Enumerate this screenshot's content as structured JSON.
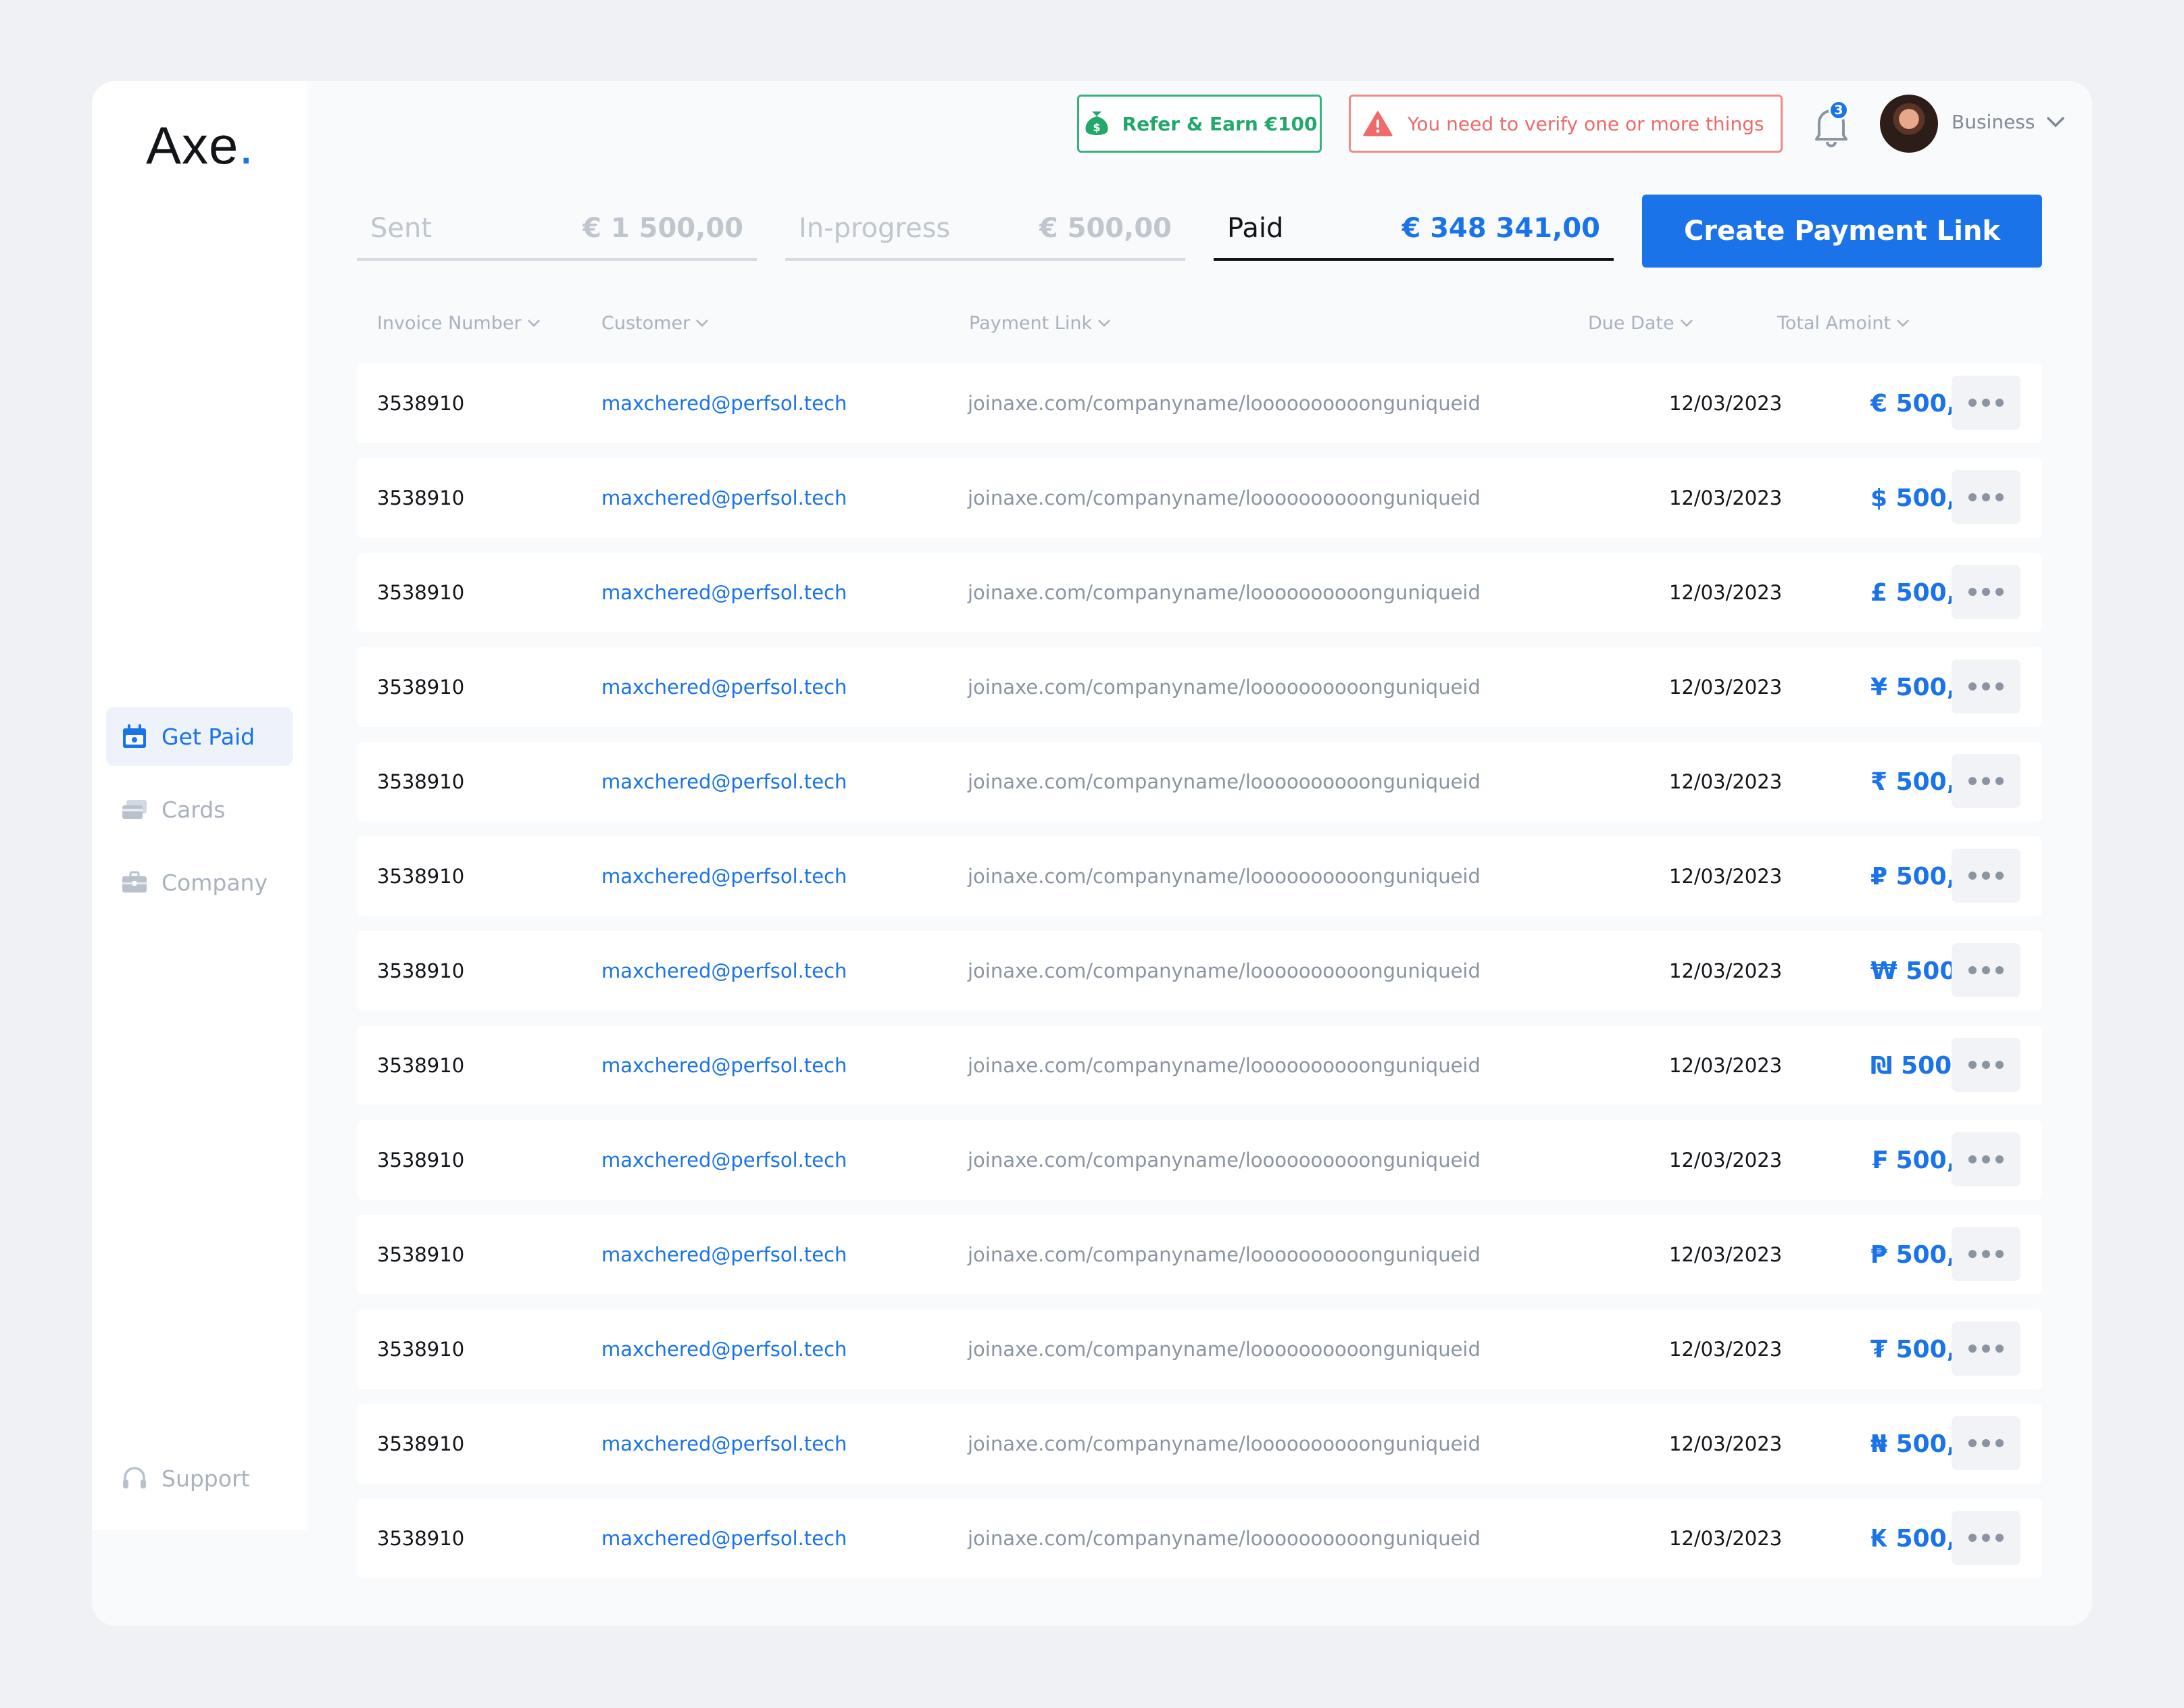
{
  "logo": {
    "text": "Axe",
    "dot": "."
  },
  "nav": [
    {
      "label": "Get Paid",
      "icon": "calendar-money-icon",
      "active": true
    },
    {
      "label": "Cards",
      "icon": "cards-icon",
      "active": false
    },
    {
      "label": "Company",
      "icon": "briefcase-icon",
      "active": false
    }
  ],
  "support": {
    "label": "Support",
    "icon": "headset-icon"
  },
  "header": {
    "refer_label": "Refer & Earn €100",
    "verify_label": "You need to verify one or more things",
    "notifications_count": "3",
    "account_label": "Business"
  },
  "tabs": [
    {
      "label": "Sent",
      "amount": "€ 1 500,00",
      "active": false
    },
    {
      "label": "In-progress",
      "amount": "€ 500,00",
      "active": false
    },
    {
      "label": "Paid",
      "amount": "€ 348 341,00",
      "active": true
    }
  ],
  "create_button": "Create Payment Link",
  "columns": {
    "invoice": "Invoice Number",
    "customer": "Customer",
    "link": "Payment Link",
    "due": "Due Date",
    "total": "Total Amoint"
  },
  "rows": [
    {
      "invoice": "3538910",
      "customer": "maxchered@perfsol.tech",
      "link": "joinaxe.com/companyname/loooooooooonguniqueid",
      "due": "12/03/2023",
      "amount": "€ 500,00"
    },
    {
      "invoice": "3538910",
      "customer": "maxchered@perfsol.tech",
      "link": "joinaxe.com/companyname/loooooooooonguniqueid",
      "due": "12/03/2023",
      "amount": "$ 500,00"
    },
    {
      "invoice": "3538910",
      "customer": "maxchered@perfsol.tech",
      "link": "joinaxe.com/companyname/loooooooooonguniqueid",
      "due": "12/03/2023",
      "amount": "£ 500,00"
    },
    {
      "invoice": "3538910",
      "customer": "maxchered@perfsol.tech",
      "link": "joinaxe.com/companyname/loooooooooonguniqueid",
      "due": "12/03/2023",
      "amount": "¥ 500,00"
    },
    {
      "invoice": "3538910",
      "customer": "maxchered@perfsol.tech",
      "link": "joinaxe.com/companyname/loooooooooonguniqueid",
      "due": "12/03/2023",
      "amount": "₹ 500,00"
    },
    {
      "invoice": "3538910",
      "customer": "maxchered@perfsol.tech",
      "link": "joinaxe.com/companyname/loooooooooonguniqueid",
      "due": "12/03/2023",
      "amount": "₽ 500,00"
    },
    {
      "invoice": "3538910",
      "customer": "maxchered@perfsol.tech",
      "link": "joinaxe.com/companyname/loooooooooonguniqueid",
      "due": "12/03/2023",
      "amount": "₩ 500,00"
    },
    {
      "invoice": "3538910",
      "customer": "maxchered@perfsol.tech",
      "link": "joinaxe.com/companyname/loooooooooonguniqueid",
      "due": "12/03/2023",
      "amount": "₪ 500,00"
    },
    {
      "invoice": "3538910",
      "customer": "maxchered@perfsol.tech",
      "link": "joinaxe.com/companyname/loooooooooonguniqueid",
      "due": "12/03/2023",
      "amount": "₣ 500,00"
    },
    {
      "invoice": "3538910",
      "customer": "maxchered@perfsol.tech",
      "link": "joinaxe.com/companyname/loooooooooonguniqueid",
      "due": "12/03/2023",
      "amount": "₱ 500,00"
    },
    {
      "invoice": "3538910",
      "customer": "maxchered@perfsol.tech",
      "link": "joinaxe.com/companyname/loooooooooonguniqueid",
      "due": "12/03/2023",
      "amount": "₮ 500,00"
    },
    {
      "invoice": "3538910",
      "customer": "maxchered@perfsol.tech",
      "link": "joinaxe.com/companyname/loooooooooonguniqueid",
      "due": "12/03/2023",
      "amount": "₦ 500,00"
    },
    {
      "invoice": "3538910",
      "customer": "maxchered@perfsol.tech",
      "link": "joinaxe.com/companyname/loooooooooonguniqueid",
      "due": "12/03/2023",
      "amount": "₭ 500,00"
    }
  ],
  "colors": {
    "accent": "#1a73e8",
    "success": "#22a86b",
    "danger": "#f06a6a"
  }
}
